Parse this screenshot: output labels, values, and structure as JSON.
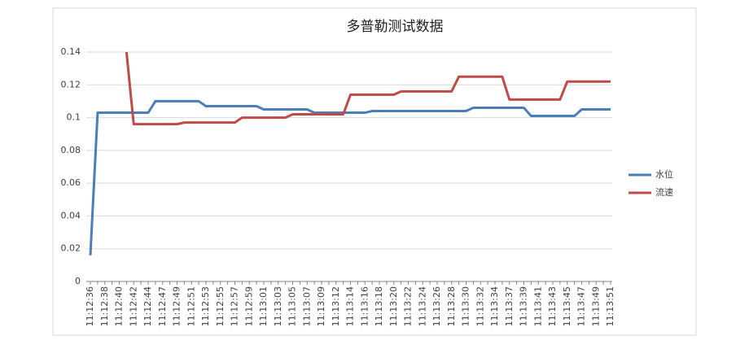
{
  "chart_data": {
    "type": "line",
    "title": "多普勒测试数据",
    "categories": [
      "11:12:36",
      null,
      "11:12:38",
      null,
      "11:12:40",
      null,
      "11:12:42",
      null,
      "11:12:44",
      null,
      "11:12:47",
      null,
      "11:12:49",
      null,
      "11:12:51",
      null,
      "11:12:53",
      null,
      "11:12:55",
      null,
      "11:12:57",
      null,
      "11:12:59",
      null,
      "11:13:01",
      null,
      "11:13:03",
      null,
      "11:13:05",
      null,
      "11:13:07",
      null,
      "11:13:09",
      null,
      "11:13:12",
      null,
      "11:13:14",
      null,
      "11:13:16",
      null,
      "11:13:18",
      null,
      "11:13:20",
      null,
      "11:13:22",
      null,
      "11:13:24",
      null,
      "11:13:26",
      null,
      "11:13:28",
      null,
      "11:13:30",
      null,
      "11:13:32",
      null,
      "11:13:34",
      null,
      "11:13:37",
      null,
      "11:13:39",
      null,
      "11:13:41",
      null,
      "11:13:43",
      null,
      "11:13:45",
      null,
      "11:13:47",
      null,
      "11:13:49",
      null,
      "11:13:51"
    ],
    "series": [
      {
        "name": "水位",
        "color": "#4a7ebb",
        "values": [
          0.016,
          0.103,
          0.103,
          0.103,
          0.103,
          0.103,
          0.103,
          0.103,
          0.103,
          0.11,
          0.11,
          0.11,
          0.11,
          0.11,
          0.11,
          0.11,
          0.107,
          0.107,
          0.107,
          0.107,
          0.107,
          0.107,
          0.107,
          0.107,
          0.105,
          0.105,
          0.105,
          0.105,
          0.105,
          0.105,
          0.105,
          0.103,
          0.103,
          0.103,
          0.103,
          0.103,
          0.103,
          0.103,
          0.103,
          0.104,
          0.104,
          0.104,
          0.104,
          0.104,
          0.104,
          0.104,
          0.104,
          0.104,
          0.104,
          0.104,
          0.104,
          0.104,
          0.104,
          0.106,
          0.106,
          0.106,
          0.106,
          0.106,
          0.106,
          0.106,
          0.106,
          0.101,
          0.101,
          0.101,
          0.101,
          0.101,
          0.101,
          0.101,
          0.105,
          0.105,
          0.105,
          0.105,
          0.105
        ]
      },
      {
        "name": "流速",
        "color": "#be4b48",
        "values": [
          null,
          null,
          null,
          null,
          null,
          0.14,
          0.096,
          0.096,
          0.096,
          0.096,
          0.096,
          0.096,
          0.096,
          0.097,
          0.097,
          0.097,
          0.097,
          0.097,
          0.097,
          0.097,
          0.097,
          0.1,
          0.1,
          0.1,
          0.1,
          0.1,
          0.1,
          0.1,
          0.102,
          0.102,
          0.102,
          0.102,
          0.102,
          0.102,
          0.102,
          0.102,
          0.114,
          0.114,
          0.114,
          0.114,
          0.114,
          0.114,
          0.114,
          0.116,
          0.116,
          0.116,
          0.116,
          0.116,
          0.116,
          0.116,
          0.116,
          0.125,
          0.125,
          0.125,
          0.125,
          0.125,
          0.125,
          0.125,
          0.111,
          0.111,
          0.111,
          0.111,
          0.111,
          0.111,
          0.111,
          0.111,
          0.122,
          0.122,
          0.122,
          0.122,
          0.122,
          0.122,
          0.122
        ]
      }
    ],
    "ylim": [
      0,
      0.14
    ],
    "yticks": [
      0,
      0.02,
      0.04,
      0.06,
      0.08,
      0.1,
      0.12,
      0.14
    ],
    "grid": true,
    "legend": "right"
  }
}
